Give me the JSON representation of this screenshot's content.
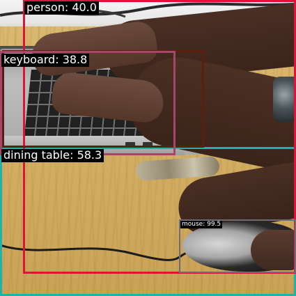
{
  "detections": [
    {
      "label": "person: 40.0",
      "color": "#dc143c"
    },
    {
      "label": "keyboard: 38.8",
      "color": "#a8456b"
    },
    {
      "label": "dining table: 58.3",
      "color": "#20b2aa"
    },
    {
      "label": "mouse: 99.5",
      "color": "#6b6b7a"
    }
  ],
  "icons": {
    "scene": "photo-desk-hands-laptop-mouse"
  }
}
